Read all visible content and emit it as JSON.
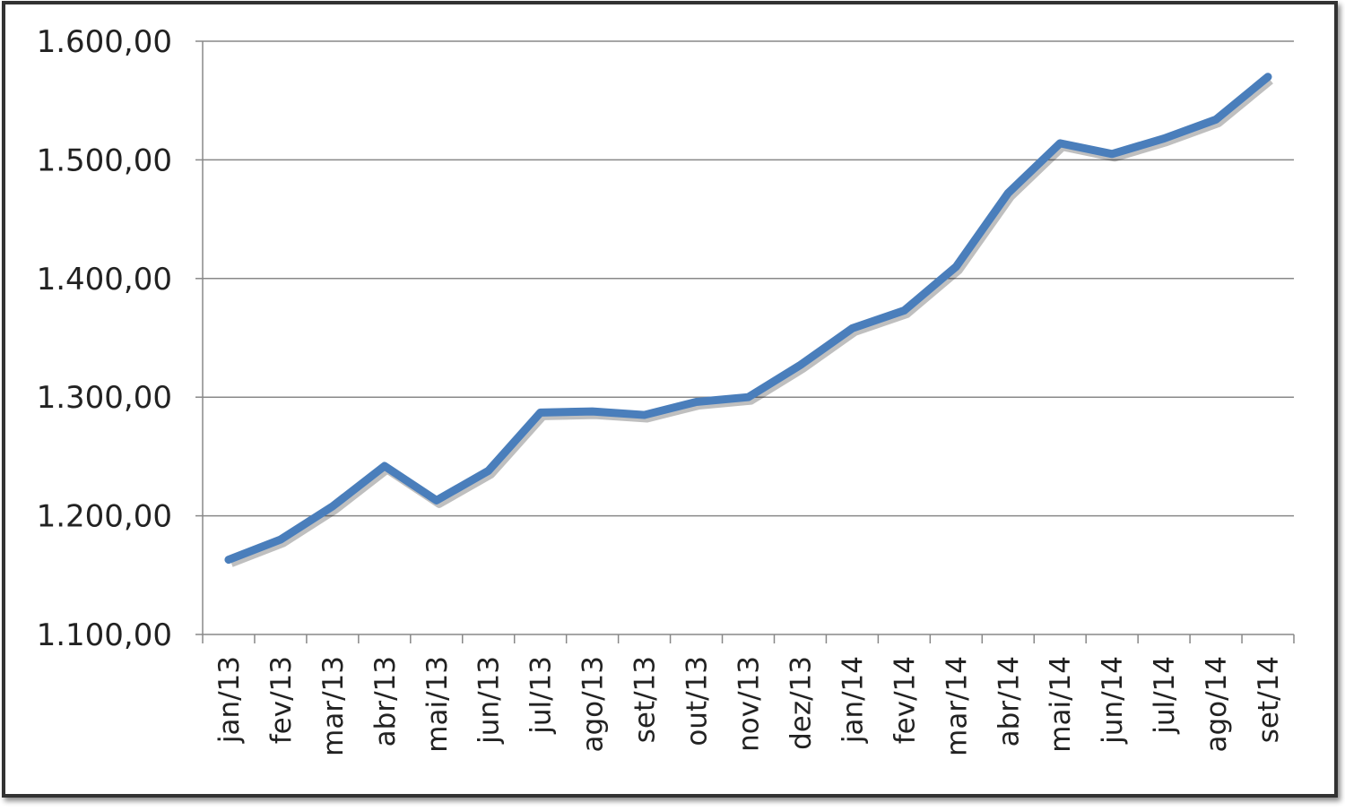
{
  "chart_data": {
    "type": "line",
    "categories": [
      "jan/13",
      "fev/13",
      "mar/13",
      "abr/13",
      "mai/13",
      "jun/13",
      "jul/13",
      "ago/13",
      "set/13",
      "out/13",
      "nov/13",
      "dez/13",
      "jan/14",
      "fev/14",
      "mar/14",
      "abr/14",
      "mai/14",
      "jun/14",
      "jul/14",
      "ago/14",
      "set/14"
    ],
    "values": [
      1163,
      1180,
      1208,
      1242,
      1213,
      1238,
      1287,
      1288,
      1285,
      1296,
      1300,
      1327,
      1358,
      1373,
      1410,
      1472,
      1514,
      1505,
      1518,
      1534,
      1570
    ],
    "color": "#4a7ebb",
    "ylim": [
      1100,
      1600
    ],
    "yticks": [
      {
        "value": 1100,
        "label": "1.100,00"
      },
      {
        "value": 1200,
        "label": "1.200,00"
      },
      {
        "value": 1300,
        "label": "1.300,00"
      },
      {
        "value": 1400,
        "label": "1.400,00"
      },
      {
        "value": 1500,
        "label": "1.500,00"
      },
      {
        "value": 1600,
        "label": "1.600,00"
      }
    ],
    "grid": true
  }
}
